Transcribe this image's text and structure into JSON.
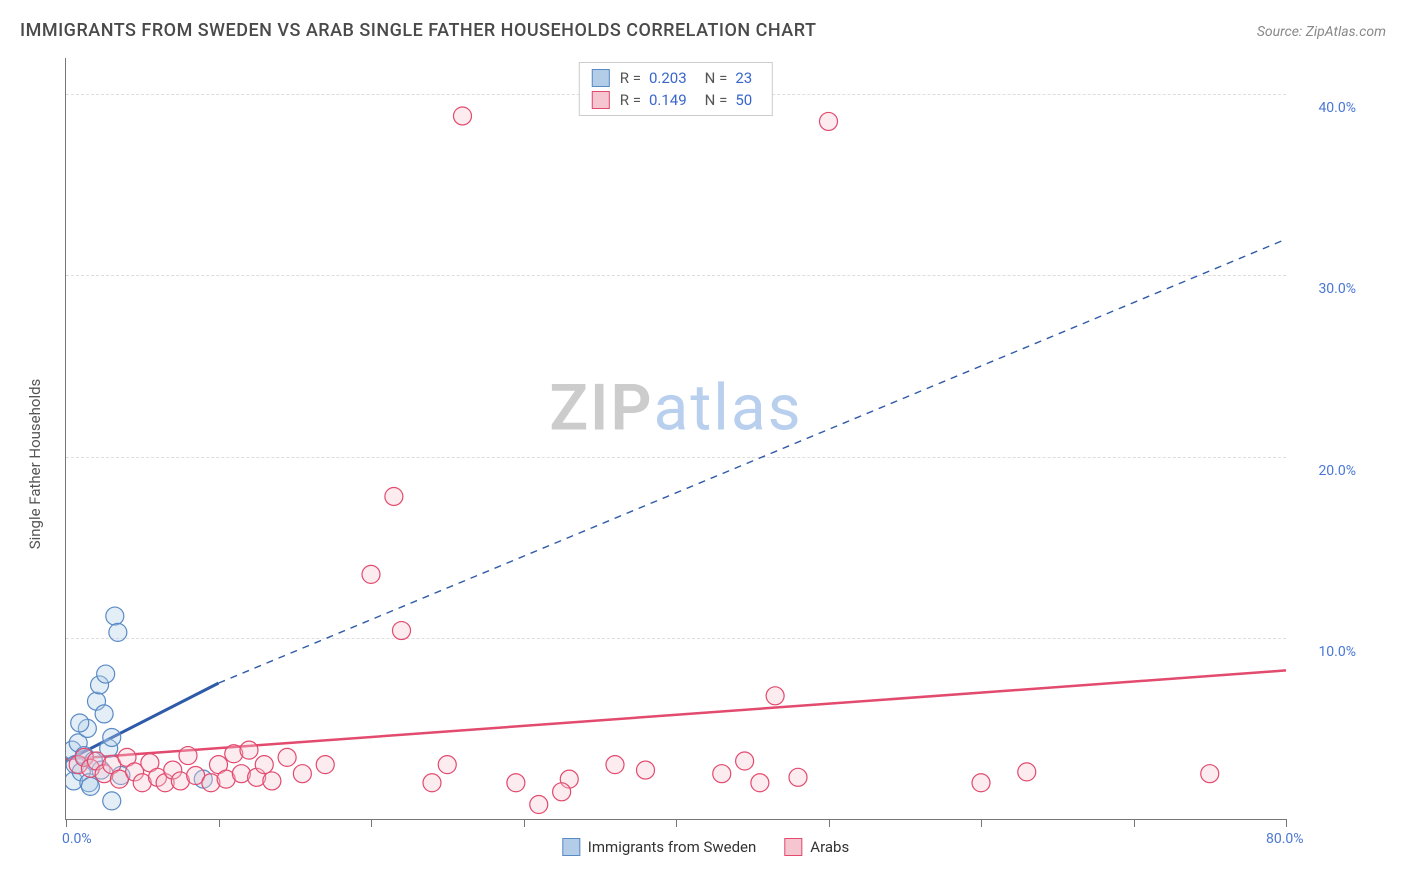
{
  "title": "IMMIGRANTS FROM SWEDEN VS ARAB SINGLE FATHER HOUSEHOLDS CORRELATION CHART",
  "source_label": "Source: ",
  "source_name": "ZipAtlas.com",
  "y_axis_title": "Single Father Households",
  "watermark": {
    "part1": "ZIP",
    "part2": "atlas"
  },
  "chart": {
    "type": "scatter",
    "background_color": "#ffffff",
    "grid_color": "#dddddd",
    "axis_color": "#777777",
    "tick_label_color": "#4a77d4",
    "xlim": [
      0,
      80
    ],
    "ylim": [
      0,
      42
    ],
    "x_ticks": [
      0,
      10,
      20,
      30,
      40,
      50,
      60,
      70,
      80
    ],
    "x_tick_labels": {
      "0": "0.0%",
      "80": "80.0%"
    },
    "y_gridlines": [
      10,
      20,
      30,
      40
    ],
    "y_tick_labels": {
      "10": "10.0%",
      "20": "20.0%",
      "30": "30.0%",
      "40": "40.0%"
    },
    "marker_radius": 9,
    "marker_fill_opacity": 0.35,
    "marker_stroke_width": 1.2,
    "series": [
      {
        "key": "sweden",
        "label": "Immigrants from Sweden",
        "color_fill": "#b3cde8",
        "color_stroke": "#5a8ac6",
        "r_value": "0.203",
        "n_value": "23",
        "trend": {
          "solid": {
            "x1": 0,
            "y1": 3.2,
            "x2": 10,
            "y2": 7.5
          },
          "dashed": {
            "x1": 10,
            "y1": 7.5,
            "x2": 80,
            "y2": 32.0
          },
          "solid_width": 3,
          "dashed_width": 1.4,
          "dash_pattern": "7 6",
          "color": "#2e5aa8"
        },
        "points": [
          {
            "x": 0.4,
            "y": 3.8
          },
          {
            "x": 0.5,
            "y": 2.1
          },
          {
            "x": 0.6,
            "y": 3.0
          },
          {
            "x": 0.8,
            "y": 4.2
          },
          {
            "x": 1.0,
            "y": 2.6
          },
          {
            "x": 1.2,
            "y": 3.5
          },
          {
            "x": 1.4,
            "y": 5.0
          },
          {
            "x": 1.5,
            "y": 2.0
          },
          {
            "x": 1.8,
            "y": 3.2
          },
          {
            "x": 2.0,
            "y": 6.5
          },
          {
            "x": 2.2,
            "y": 7.4
          },
          {
            "x": 2.5,
            "y": 5.8
          },
          {
            "x": 2.6,
            "y": 8.0
          },
          {
            "x": 2.8,
            "y": 3.9
          },
          {
            "x": 3.0,
            "y": 4.5
          },
          {
            "x": 3.2,
            "y": 11.2
          },
          {
            "x": 3.4,
            "y": 10.3
          },
          {
            "x": 3.6,
            "y": 2.4
          },
          {
            "x": 1.6,
            "y": 1.8
          },
          {
            "x": 2.3,
            "y": 2.7
          },
          {
            "x": 0.9,
            "y": 5.3
          },
          {
            "x": 9.0,
            "y": 2.2
          },
          {
            "x": 3.0,
            "y": 1.0
          }
        ]
      },
      {
        "key": "arabs",
        "label": "Arabs",
        "color_fill": "#f6c6d0",
        "color_stroke": "#e24a6e",
        "r_value": "0.149",
        "n_value": "50",
        "trend": {
          "solid": {
            "x1": 0,
            "y1": 3.3,
            "x2": 80,
            "y2": 8.2
          },
          "solid_width": 2.5,
          "color": "#e24a6e"
        },
        "points": [
          {
            "x": 0.8,
            "y": 3.0
          },
          {
            "x": 1.2,
            "y": 3.4
          },
          {
            "x": 1.6,
            "y": 2.8
          },
          {
            "x": 2.0,
            "y": 3.2
          },
          {
            "x": 2.5,
            "y": 2.5
          },
          {
            "x": 3.0,
            "y": 3.0
          },
          {
            "x": 3.5,
            "y": 2.2
          },
          {
            "x": 4.0,
            "y": 3.4
          },
          {
            "x": 4.5,
            "y": 2.6
          },
          {
            "x": 5.0,
            "y": 2.0
          },
          {
            "x": 5.5,
            "y": 3.1
          },
          {
            "x": 6.0,
            "y": 2.3
          },
          {
            "x": 6.5,
            "y": 2.0
          },
          {
            "x": 7.0,
            "y": 2.7
          },
          {
            "x": 7.5,
            "y": 2.1
          },
          {
            "x": 8.0,
            "y": 3.5
          },
          {
            "x": 8.5,
            "y": 2.4
          },
          {
            "x": 9.5,
            "y": 2.0
          },
          {
            "x": 10.0,
            "y": 3.0
          },
          {
            "x": 10.5,
            "y": 2.2
          },
          {
            "x": 11.0,
            "y": 3.6
          },
          {
            "x": 11.5,
            "y": 2.5
          },
          {
            "x": 12.0,
            "y": 3.8
          },
          {
            "x": 12.5,
            "y": 2.3
          },
          {
            "x": 13.0,
            "y": 3.0
          },
          {
            "x": 13.5,
            "y": 2.1
          },
          {
            "x": 14.5,
            "y": 3.4
          },
          {
            "x": 15.5,
            "y": 2.5
          },
          {
            "x": 17.0,
            "y": 3.0
          },
          {
            "x": 20.0,
            "y": 13.5
          },
          {
            "x": 21.5,
            "y": 17.8
          },
          {
            "x": 22.0,
            "y": 10.4
          },
          {
            "x": 24.0,
            "y": 2.0
          },
          {
            "x": 25.0,
            "y": 3.0
          },
          {
            "x": 26.0,
            "y": 38.8
          },
          {
            "x": 29.5,
            "y": 2.0
          },
          {
            "x": 31.0,
            "y": 0.8
          },
          {
            "x": 33.0,
            "y": 2.2
          },
          {
            "x": 36.0,
            "y": 3.0
          },
          {
            "x": 38.0,
            "y": 2.7
          },
          {
            "x": 43.0,
            "y": 2.5
          },
          {
            "x": 44.5,
            "y": 3.2
          },
          {
            "x": 45.5,
            "y": 2.0
          },
          {
            "x": 46.5,
            "y": 6.8
          },
          {
            "x": 48.0,
            "y": 2.3
          },
          {
            "x": 50.0,
            "y": 38.5
          },
          {
            "x": 60.0,
            "y": 2.0
          },
          {
            "x": 63.0,
            "y": 2.6
          },
          {
            "x": 75.0,
            "y": 2.5
          },
          {
            "x": 32.5,
            "y": 1.5
          }
        ]
      }
    ],
    "legend_stat_labels": {
      "r": "R =",
      "n": "N ="
    }
  }
}
